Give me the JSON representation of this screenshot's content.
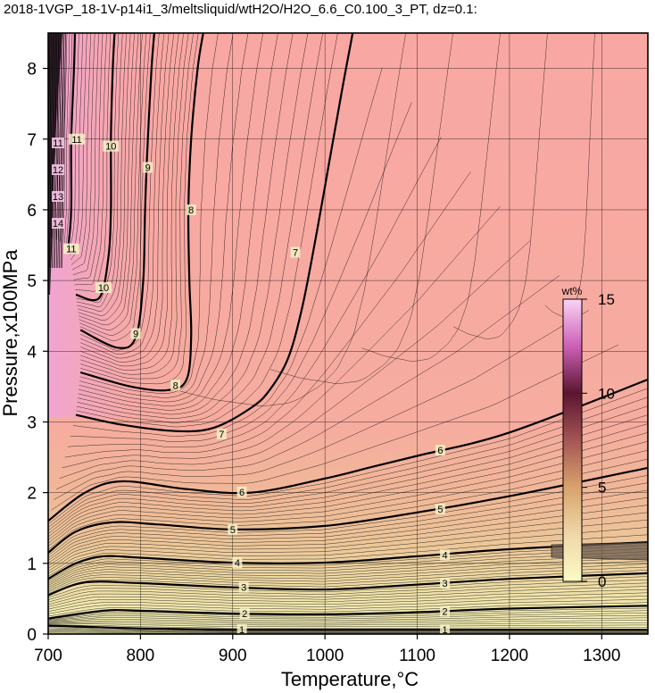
{
  "title": "2018-1VGP_18-1V-p14i1_3/meltsliquid/wtH2O/H2O_6.6_C0.100_3_PT, dz=0.1:",
  "chart_data": {
    "type": "heatmap",
    "subtype": "contour map",
    "xlabel": "Temperature,°C",
    "ylabel": "Pressure,x100MPa",
    "xlim": [
      700,
      1350
    ],
    "ylim": [
      0,
      8.5
    ],
    "xticks": [
      "700",
      "800",
      "900",
      "1000",
      "1100",
      "1200",
      "1300"
    ],
    "yticks": [
      "0",
      "1",
      "2",
      "3",
      "4",
      "5",
      "6",
      "7",
      "8"
    ],
    "grid": true,
    "contour_interval": 0.1,
    "colorbar": {
      "unit": "wt%",
      "ticks": [
        "0",
        "5",
        "10",
        "15"
      ],
      "range": [
        0,
        15
      ],
      "colors": [
        "#fbfbc6",
        "#efd7a8",
        "#d8a36c",
        "#a55555",
        "#5a1530",
        "#cc60b5",
        "#fad3f7"
      ]
    },
    "labeled_contours": [
      {
        "level": "1",
        "points": [
          [
            700,
            0.12
          ],
          [
            800,
            0.08
          ],
          [
            900,
            0.06
          ],
          [
            1000,
            0.06
          ],
          [
            1100,
            0.06
          ],
          [
            1200,
            0.06
          ],
          [
            1350,
            0.06
          ]
        ],
        "labels": [
          [
            910,
            0.06
          ],
          [
            1130,
            0.06
          ]
        ]
      },
      {
        "level": "2",
        "points": [
          [
            700,
            0.22
          ],
          [
            760,
            0.33
          ],
          [
            800,
            0.33
          ],
          [
            900,
            0.29
          ],
          [
            1000,
            0.28
          ],
          [
            1100,
            0.31
          ],
          [
            1200,
            0.36
          ],
          [
            1350,
            0.4
          ]
        ],
        "labels": [
          [
            913,
            0.29
          ],
          [
            1130,
            0.32
          ]
        ]
      },
      {
        "level": "3",
        "points": [
          [
            700,
            0.55
          ],
          [
            740,
            0.73
          ],
          [
            800,
            0.72
          ],
          [
            900,
            0.66
          ],
          [
            1000,
            0.63
          ],
          [
            1100,
            0.7
          ],
          [
            1200,
            0.78
          ],
          [
            1350,
            0.86
          ]
        ],
        "labels": [
          [
            912,
            0.66
          ],
          [
            1130,
            0.72
          ]
        ]
      },
      {
        "level": "4",
        "points": [
          [
            700,
            0.78
          ],
          [
            730,
            1.0
          ],
          [
            760,
            1.1
          ],
          [
            800,
            1.08
          ],
          [
            900,
            1.01
          ],
          [
            1000,
            1.01
          ],
          [
            1100,
            1.1
          ],
          [
            1200,
            1.2
          ],
          [
            1350,
            1.3
          ]
        ],
        "labels": [
          [
            905,
            1.01
          ],
          [
            1130,
            1.12
          ]
        ]
      },
      {
        "level": "5",
        "points": [
          [
            700,
            1.15
          ],
          [
            730,
            1.45
          ],
          [
            770,
            1.58
          ],
          [
            820,
            1.55
          ],
          [
            900,
            1.48
          ],
          [
            1000,
            1.53
          ],
          [
            1100,
            1.72
          ],
          [
            1200,
            1.95
          ],
          [
            1350,
            2.35
          ]
        ],
        "labels": [
          [
            900,
            1.48
          ],
          [
            1125,
            1.77
          ]
        ]
      },
      {
        "level": "6",
        "points": [
          [
            700,
            1.6
          ],
          [
            740,
            2.0
          ],
          [
            780,
            2.16
          ],
          [
            850,
            2.05
          ],
          [
            920,
            2.0
          ],
          [
            1000,
            2.2
          ],
          [
            1050,
            2.36
          ],
          [
            1100,
            2.52
          ],
          [
            1200,
            2.85
          ],
          [
            1350,
            3.6
          ]
        ],
        "labels": [
          [
            910,
            2.01
          ],
          [
            1125,
            2.6
          ]
        ]
      },
      {
        "level": "7",
        "points": [
          [
            730,
            3.1
          ],
          [
            780,
            2.96
          ],
          [
            840,
            2.87
          ],
          [
            880,
            2.92
          ],
          [
            920,
            3.2
          ],
          [
            940,
            3.45
          ],
          [
            960,
            3.9
          ],
          [
            975,
            4.6
          ],
          [
            990,
            5.6
          ],
          [
            1005,
            6.7
          ],
          [
            1020,
            7.8
          ],
          [
            1030,
            8.5
          ]
        ],
        "labels": [
          [
            888,
            2.83
          ],
          [
            968,
            5.4
          ]
        ]
      },
      {
        "level": "8",
        "points": [
          [
            735,
            3.7
          ],
          [
            790,
            3.5
          ],
          [
            830,
            3.45
          ],
          [
            850,
            3.6
          ],
          [
            855,
            4.2
          ],
          [
            853,
            5.0
          ],
          [
            852,
            6.0
          ],
          [
            855,
            7.0
          ],
          [
            862,
            8.0
          ],
          [
            868,
            8.5
          ]
        ],
        "labels": [
          [
            838,
            3.52
          ],
          [
            855,
            6.0
          ]
        ]
      },
      {
        "level": "9",
        "points": [
          [
            735,
            4.3
          ],
          [
            775,
            4.05
          ],
          [
            795,
            4.2
          ],
          [
            803,
            5.0
          ],
          [
            805,
            6.0
          ],
          [
            808,
            7.0
          ],
          [
            812,
            8.0
          ],
          [
            815,
            8.5
          ]
        ],
        "labels": [
          [
            795,
            4.25
          ],
          [
            808,
            6.6
          ]
        ]
      },
      {
        "level": "10",
        "points": [
          [
            730,
            4.8
          ],
          [
            755,
            4.75
          ],
          [
            765,
            5.3
          ],
          [
            768,
            6.0
          ],
          [
            768,
            7.0
          ],
          [
            770,
            8.0
          ],
          [
            772,
            8.5
          ]
        ],
        "labels": [
          [
            760,
            4.9
          ],
          [
            768,
            6.9
          ]
        ]
      },
      {
        "level": "11",
        "points": [
          [
            722,
            5.5
          ],
          [
            725,
            6.0
          ],
          [
            725,
            7.0
          ],
          [
            728,
            8.0
          ],
          [
            729,
            8.5
          ]
        ],
        "labels": [
          [
            725,
            5.45
          ],
          [
            731,
            7.0
          ]
        ]
      }
    ],
    "edge_labels": [
      "11",
      "12",
      "13",
      "14"
    ]
  }
}
